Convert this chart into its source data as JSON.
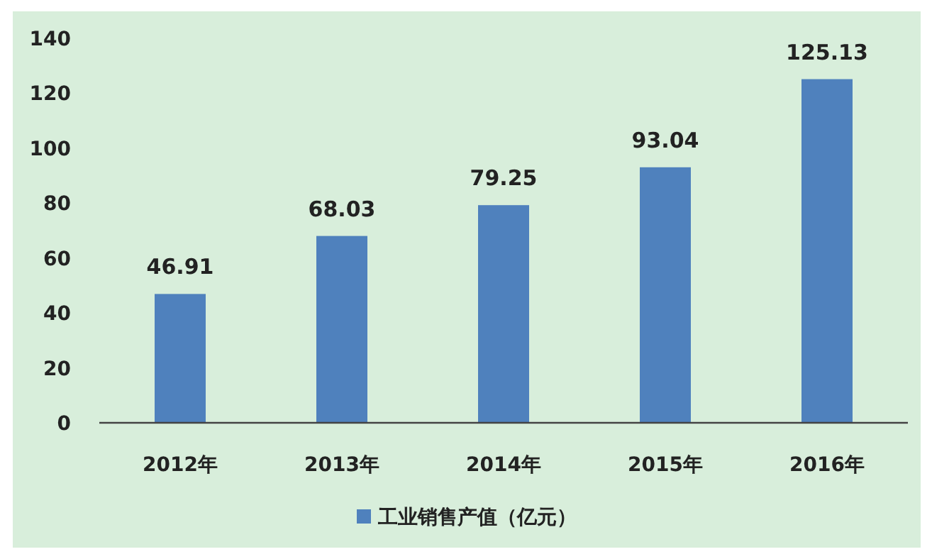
{
  "chart_data": {
    "type": "bar",
    "categories": [
      "2012年",
      "2013年",
      "2014年",
      "2015年",
      "2016年"
    ],
    "series": [
      {
        "name": "工业销售产值（亿元）",
        "color": "#4f81bd",
        "values": [
          46.91,
          68.03,
          79.25,
          93.04,
          125.13
        ]
      }
    ],
    "ylim": [
      0,
      140
    ],
    "yticks": [
      0,
      20,
      40,
      60,
      80,
      100,
      120,
      140
    ],
    "data_labels": true,
    "legend": "bottom"
  }
}
